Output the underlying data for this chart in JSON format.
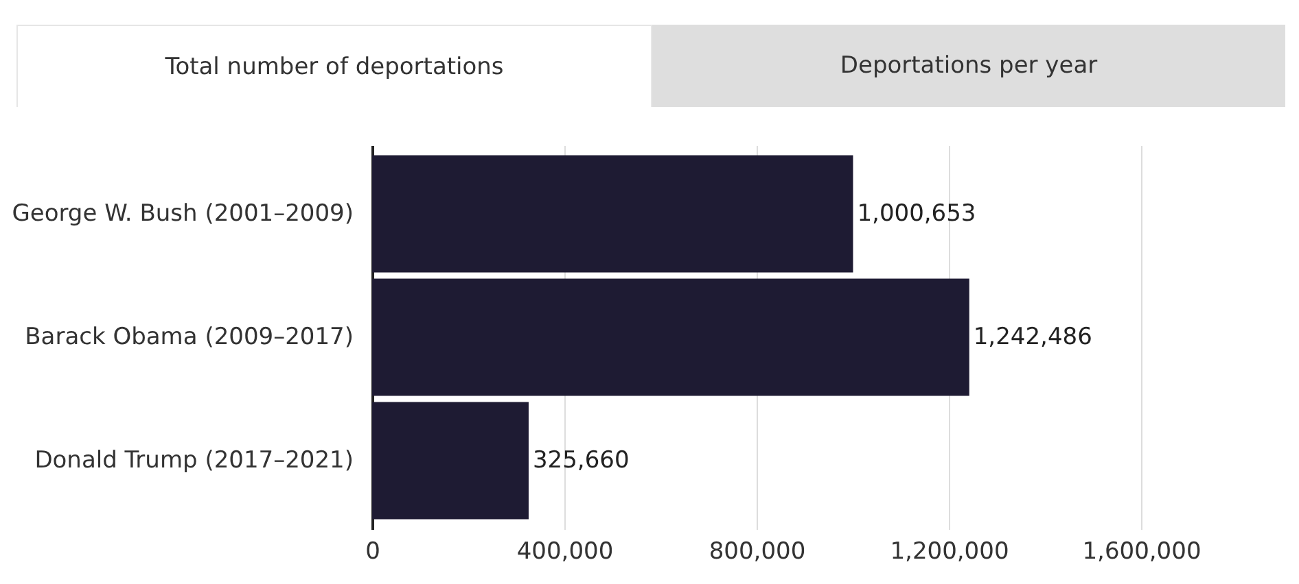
{
  "chart_data": {
    "type": "bar",
    "orientation": "horizontal",
    "categories": [
      "George W. Bush (2001–2009)",
      "Barack Obama (2009–2017)",
      "Donald Trump (2017–2021)"
    ],
    "values": [
      1000653,
      1242486,
      325660
    ],
    "color": "#1e1b33",
    "xlim": [
      0,
      1600000
    ],
    "xticks": [
      0,
      {
        "value": 400000,
        "label": "400,000"
      },
      {
        "value": 800000,
        "label": "800,000"
      },
      {
        "value": 1200000,
        "label": "1,200,000"
      },
      {
        "value": 1600000,
        "label": "1,600,000"
      }
    ],
    "grid": "x",
    "value_labels": [
      "1,000,653",
      "1,242,486",
      "325,660"
    ],
    "annotations": [
      "Total number of deportations",
      "Deportations per year"
    ]
  }
}
